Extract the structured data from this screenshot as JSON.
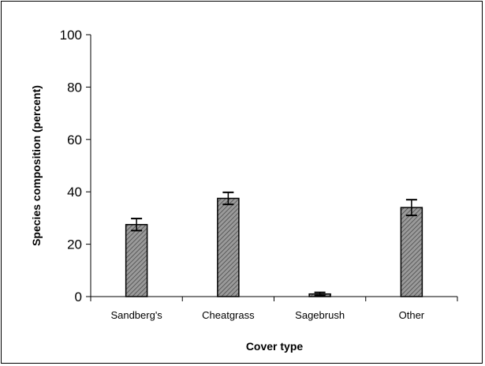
{
  "chart_data": {
    "type": "bar",
    "categories": [
      "Sandberg's",
      "Cheatgrass",
      "Sagebrush",
      "Other"
    ],
    "values": [
      27.5,
      37.5,
      1.0,
      34.0
    ],
    "errors": [
      2.3,
      2.3,
      0.6,
      3.0
    ],
    "xlabel": "Cover type",
    "ylabel": "Species composition (percent)",
    "ylim": [
      0,
      100
    ],
    "yticks": [
      0,
      20,
      40,
      60,
      80,
      100
    ],
    "grid": false,
    "legend": "none",
    "bar_color": "#8c8c8c",
    "bar_hatch_color": "#5a5a5a"
  }
}
